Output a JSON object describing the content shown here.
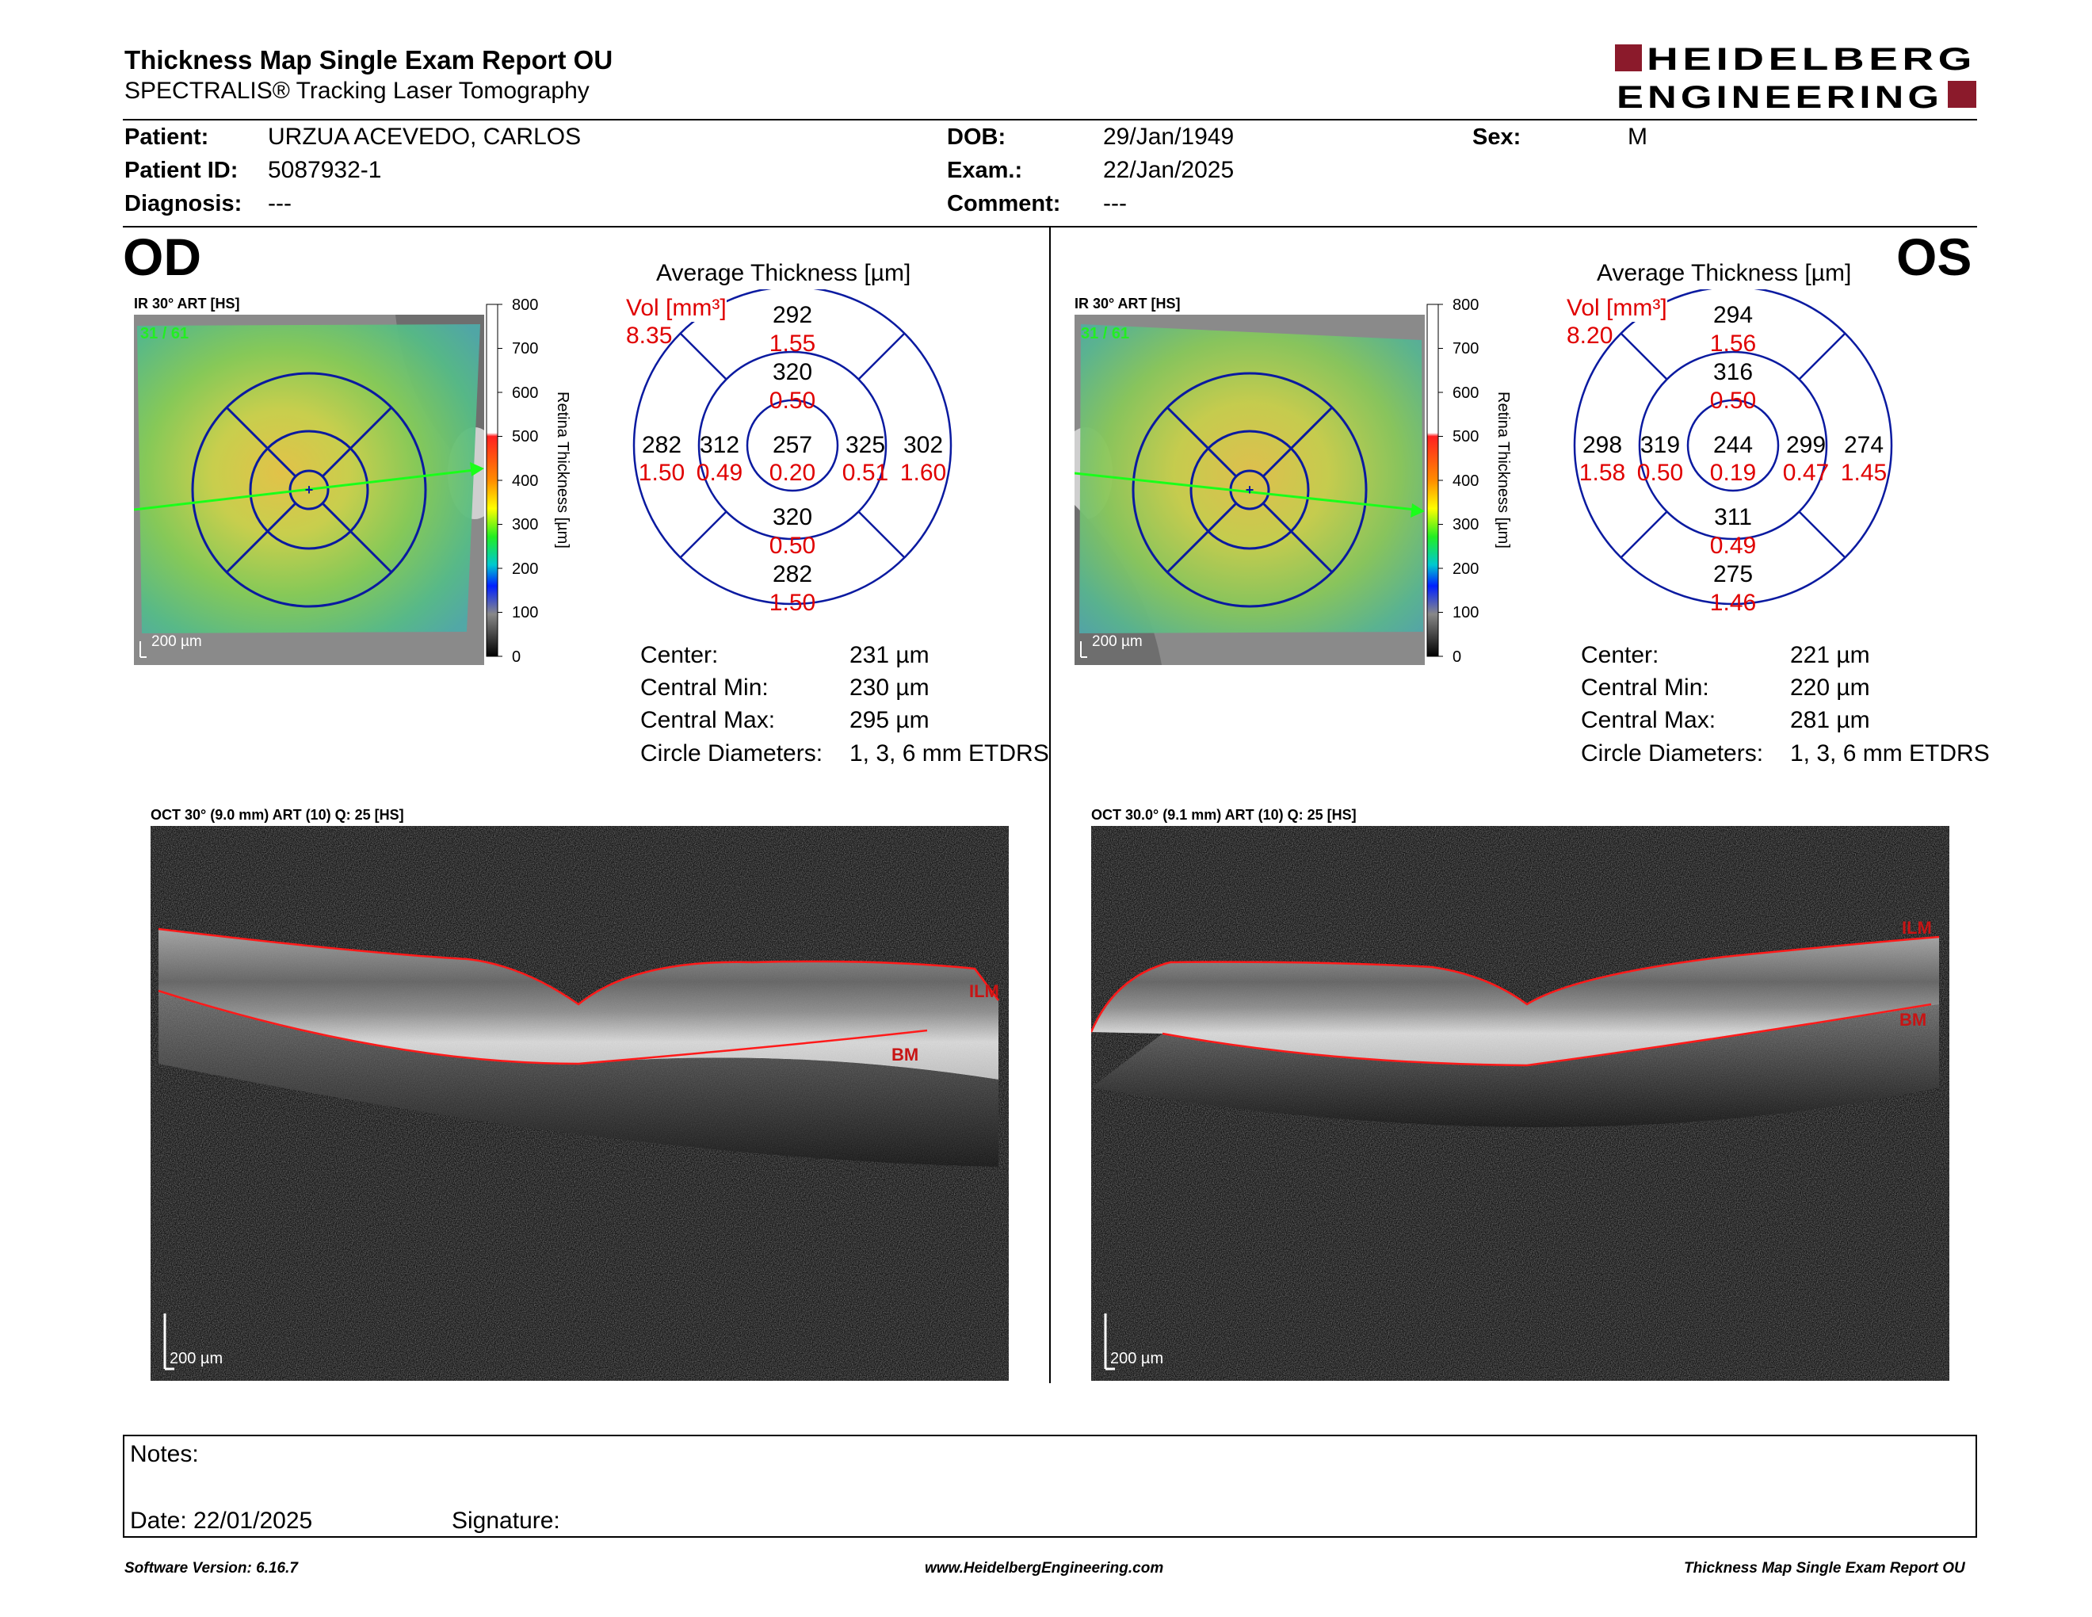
{
  "header": {
    "title": "Thickness Map Single Exam Report OU",
    "subtitle": "SPECTRALIS® Tracking Laser Tomography",
    "brand_line1": "HEIDELBERG",
    "brand_line2": "ENGINEERING",
    "brand_color": "#8b1a2b"
  },
  "patient": {
    "patient_label": "Patient:",
    "patient_value": "URZUA ACEVEDO, CARLOS",
    "id_label": "Patient ID:",
    "id_value": "5087932-1",
    "diagnosis_label": "Diagnosis:",
    "diagnosis_value": "---",
    "dob_label": "DOB:",
    "dob_value": "29/Jan/1949",
    "exam_label": "Exam.:",
    "exam_value": "22/Jan/2025",
    "comment_label": "Comment:",
    "comment_value": "---",
    "sex_label": "Sex:",
    "sex_value": "M"
  },
  "od": {
    "eye": "OD",
    "map_label": "IR 30° ART [HS]",
    "frames": "31 / 61",
    "scalebar": "200 µm",
    "colorbar_ticks": [
      "800",
      "700",
      "600",
      "500",
      "400",
      "300",
      "200",
      "100",
      "0"
    ],
    "colorbar_label": "Retina Thickness [µm]",
    "avg_title": "Average Thickness [µm]",
    "vol_label": "Vol [mm³]",
    "vol_total": "8.35",
    "grid": {
      "center": {
        "t": "257",
        "v": "0.20"
      },
      "inner_sup": {
        "t": "320",
        "v": "0.50"
      },
      "inner_inf": {
        "t": "320",
        "v": "0.50"
      },
      "inner_left": {
        "t": "312",
        "v": "0.49"
      },
      "inner_right": {
        "t": "325",
        "v": "0.51"
      },
      "outer_sup": {
        "t": "292",
        "v": "1.55"
      },
      "outer_inf": {
        "t": "282",
        "v": "1.50"
      },
      "outer_left": {
        "t": "282",
        "v": "1.50"
      },
      "outer_right": {
        "t": "302",
        "v": "1.60"
      }
    },
    "stats": {
      "center_label": "Center:",
      "center_value": "231 µm",
      "min_label": "Central Min:",
      "min_value": "230 µm",
      "max_label": "Central Max:",
      "max_value": "295 µm",
      "diam_label": "Circle Diameters:",
      "diam_value": "1, 3, 6 mm ETDRS"
    },
    "oct_label": "OCT 30° (9.0 mm) ART (10) Q: 25 [HS]",
    "oct_ilm": "ILM",
    "oct_bm": "BM",
    "oct_scalebar": "200 µm"
  },
  "os": {
    "eye": "OS",
    "map_label": "IR 30° ART [HS]",
    "frames": "31 / 61",
    "scalebar": "200 µm",
    "colorbar_ticks": [
      "800",
      "700",
      "600",
      "500",
      "400",
      "300",
      "200",
      "100",
      "0"
    ],
    "colorbar_label": "Retina Thickness [µm]",
    "avg_title": "Average Thickness [µm]",
    "vol_label": "Vol [mm³]",
    "vol_total": "8.20",
    "grid": {
      "center": {
        "t": "244",
        "v": "0.19"
      },
      "inner_sup": {
        "t": "316",
        "v": "0.50"
      },
      "inner_inf": {
        "t": "311",
        "v": "0.49"
      },
      "inner_left": {
        "t": "319",
        "v": "0.50"
      },
      "inner_right": {
        "t": "299",
        "v": "0.47"
      },
      "outer_sup": {
        "t": "294",
        "v": "1.56"
      },
      "outer_inf": {
        "t": "275",
        "v": "1.46"
      },
      "outer_left": {
        "t": "298",
        "v": "1.58"
      },
      "outer_right": {
        "t": "274",
        "v": "1.45"
      }
    },
    "stats": {
      "center_label": "Center:",
      "center_value": "221 µm",
      "min_label": "Central Min:",
      "min_value": "220 µm",
      "max_label": "Central Max:",
      "max_value": "281 µm",
      "diam_label": "Circle Diameters:",
      "diam_value": "1, 3, 6 mm ETDRS"
    },
    "oct_label": "OCT 30.0° (9.1 mm) ART (10) Q: 25 [HS]",
    "oct_ilm": "ILM",
    "oct_bm": "BM",
    "oct_scalebar": "200 µm"
  },
  "notes": {
    "notes_label": "Notes:",
    "date_label": "Date: 22/01/2025",
    "signature_label": "Signature:"
  },
  "footer": {
    "software": "Software Version: 6.16.7",
    "website": "www.HeidelbergEngineering.com",
    "report": "Thickness Map Single Exam Report OU"
  }
}
